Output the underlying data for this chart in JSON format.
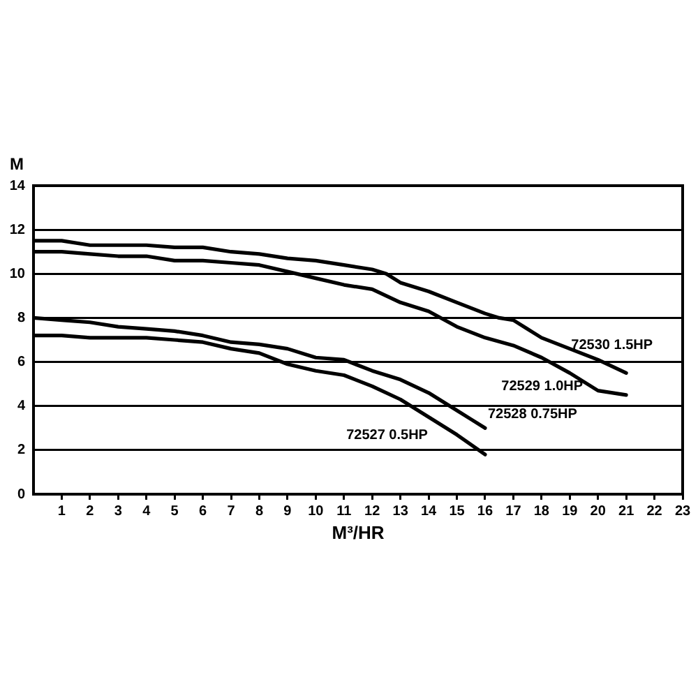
{
  "chart_data": {
    "type": "line",
    "xlabel": "M³/HR",
    "ylabel": "M",
    "xlim": [
      0,
      23
    ],
    "xticks": [
      1,
      2,
      3,
      4,
      5,
      6,
      7,
      8,
      9,
      10,
      11,
      12,
      13,
      14,
      15,
      16,
      17,
      18,
      19,
      20,
      21,
      22,
      23
    ],
    "ylim": [
      0,
      14
    ],
    "yticks": [
      0,
      2,
      4,
      6,
      8,
      10,
      12,
      14
    ],
    "grid": "y",
    "legend": false,
    "marker": "none",
    "line_style": "solid",
    "series": [
      {
        "name": "72530 1.5HP",
        "color": "#000000",
        "x": [
          0,
          1,
          2,
          3,
          4,
          5,
          6,
          7,
          8,
          9,
          10,
          11,
          12,
          12.5,
          13,
          14,
          15,
          16,
          16.5,
          17,
          17.5,
          18,
          19,
          20,
          21
        ],
        "values": [
          11.5,
          11.5,
          11.3,
          11.3,
          11.3,
          11.2,
          11.2,
          11.0,
          10.9,
          10.7,
          10.6,
          10.4,
          10.2,
          10.0,
          9.6,
          9.2,
          8.7,
          8.2,
          8.0,
          7.9,
          7.5,
          7.1,
          6.6,
          6.1,
          5.5
        ]
      },
      {
        "name": "72529 1.0HP",
        "color": "#000000",
        "x": [
          0,
          1,
          2,
          3,
          4,
          5,
          6,
          7,
          8,
          9,
          10,
          11,
          12,
          13,
          14,
          15,
          16,
          17,
          18,
          19,
          20,
          21
        ],
        "values": [
          11.0,
          11.0,
          10.9,
          10.8,
          10.8,
          10.6,
          10.6,
          10.5,
          10.4,
          10.1,
          9.8,
          9.5,
          9.3,
          8.7,
          8.3,
          7.6,
          7.1,
          6.75,
          6.2,
          5.5,
          4.7,
          4.5
        ]
      },
      {
        "name": "72528 0.75HP",
        "color": "#000000",
        "x": [
          0,
          1,
          2,
          3,
          4,
          5,
          6,
          7,
          8,
          9,
          10,
          11,
          12,
          13,
          14,
          15,
          15.5,
          16
        ],
        "values": [
          8.0,
          7.9,
          7.8,
          7.6,
          7.5,
          7.4,
          7.2,
          6.9,
          6.8,
          6.6,
          6.2,
          6.1,
          5.6,
          5.2,
          4.6,
          3.8,
          3.4,
          3.0
        ]
      },
      {
        "name": "72527 0.5HP",
        "color": "#000000",
        "x": [
          0,
          1,
          2,
          3,
          4,
          5,
          6,
          7,
          8,
          9,
          10,
          11,
          12,
          13,
          14,
          15,
          16
        ],
        "values": [
          7.2,
          7.2,
          7.1,
          7.1,
          7.1,
          7.0,
          6.9,
          6.6,
          6.4,
          5.9,
          5.6,
          5.4,
          4.9,
          4.3,
          3.5,
          2.7,
          1.8
        ]
      }
    ]
  }
}
